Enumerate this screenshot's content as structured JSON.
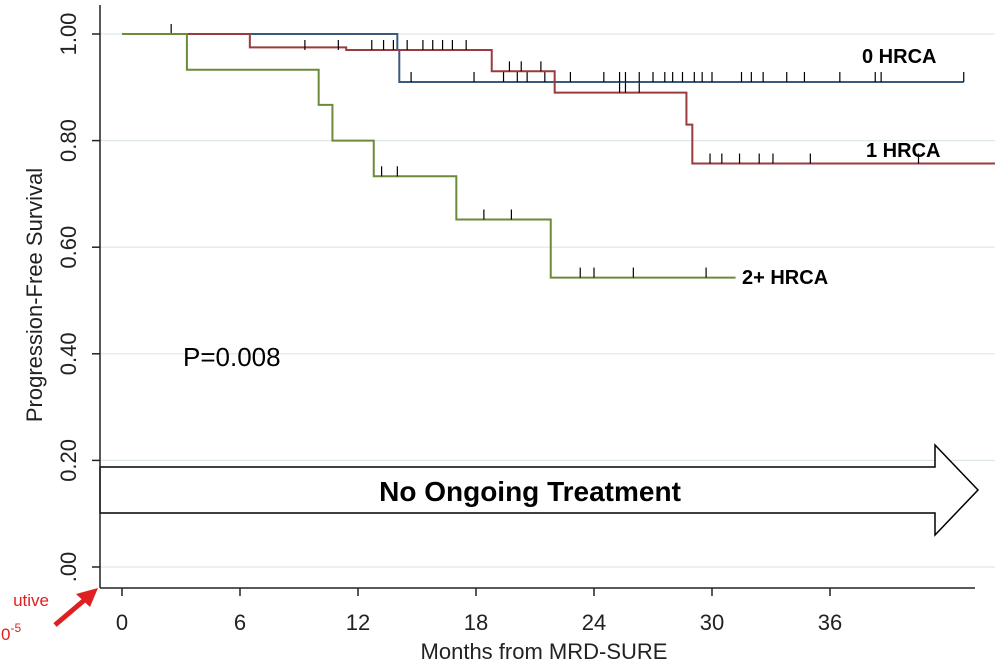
{
  "chart_data": {
    "type": "line",
    "xlabel": "Months from MRD-SURE",
    "ylabel": "Progression-Free Survival",
    "xlim": [
      0,
      48
    ],
    "ylim": [
      0,
      1.0
    ],
    "x_ticks": [
      0,
      6,
      12,
      18,
      24,
      30,
      36
    ],
    "y_ticks": [
      0.0,
      0.2,
      0.4,
      0.6,
      0.8,
      1.0
    ],
    "x_tick_labels": [
      "0",
      "6",
      "12",
      "18",
      "24",
      "30",
      "36"
    ],
    "y_tick_labels": [
      ".00",
      "0.20",
      "0.40",
      "0.60",
      "0.80",
      "1.00"
    ],
    "grid": true,
    "series": [
      {
        "name": "0 HRCA",
        "color": "#3a5a7c",
        "steps": [
          [
            0,
            1.0
          ],
          [
            14.0,
            0.97
          ],
          [
            14.1,
            0.91
          ],
          [
            42.8,
            0.91
          ]
        ],
        "censors": [
          [
            2.5,
            1.0
          ],
          [
            14.7,
            0.91
          ],
          [
            17.9,
            0.91
          ],
          [
            19.4,
            0.91
          ],
          [
            20.1,
            0.91
          ],
          [
            20.6,
            0.91
          ],
          [
            21.5,
            0.91
          ],
          [
            22.8,
            0.91
          ],
          [
            24.5,
            0.91
          ],
          [
            25.3,
            0.91
          ],
          [
            25.6,
            0.91
          ],
          [
            26.3,
            0.91
          ],
          [
            27.0,
            0.91
          ],
          [
            27.6,
            0.91
          ],
          [
            28.0,
            0.91
          ],
          [
            28.5,
            0.91
          ],
          [
            29.1,
            0.91
          ],
          [
            29.5,
            0.91
          ],
          [
            30.0,
            0.91
          ],
          [
            31.5,
            0.91
          ],
          [
            32.0,
            0.91
          ],
          [
            32.6,
            0.91
          ],
          [
            33.8,
            0.91
          ],
          [
            34.7,
            0.91
          ],
          [
            36.5,
            0.91
          ],
          [
            38.3,
            0.91
          ],
          [
            38.6,
            0.91
          ],
          [
            42.8,
            0.91
          ]
        ]
      },
      {
        "name": "1 HRCA",
        "color": "#9b3a3f",
        "steps": [
          [
            0,
            1.0
          ],
          [
            6.5,
            0.975
          ],
          [
            11.4,
            0.97
          ],
          [
            18.8,
            0.93
          ],
          [
            22.0,
            0.89
          ],
          [
            28.7,
            0.83
          ],
          [
            29.0,
            0.757
          ],
          [
            44.9,
            0.757
          ]
        ],
        "censors": [
          [
            9.3,
            0.97
          ],
          [
            11.0,
            0.97
          ],
          [
            12.7,
            0.97
          ],
          [
            13.3,
            0.97
          ],
          [
            13.8,
            0.97
          ],
          [
            14.5,
            0.97
          ],
          [
            15.3,
            0.97
          ],
          [
            15.8,
            0.97
          ],
          [
            16.3,
            0.97
          ],
          [
            16.8,
            0.97
          ],
          [
            17.5,
            0.97
          ],
          [
            19.7,
            0.93
          ],
          [
            20.3,
            0.93
          ],
          [
            21.3,
            0.93
          ],
          [
            25.3,
            0.89
          ],
          [
            25.6,
            0.89
          ],
          [
            26.3,
            0.89
          ],
          [
            29.9,
            0.757
          ],
          [
            30.5,
            0.757
          ],
          [
            31.4,
            0.757
          ],
          [
            32.4,
            0.757
          ],
          [
            33.1,
            0.757
          ],
          [
            35.0,
            0.757
          ],
          [
            40.5,
            0.757
          ],
          [
            44.9,
            0.757
          ]
        ]
      },
      {
        "name": "2+ HRCA",
        "color": "#6b8a3a",
        "steps": [
          [
            0,
            1.0
          ],
          [
            3.3,
            0.933
          ],
          [
            10.0,
            0.867
          ],
          [
            10.7,
            0.8
          ],
          [
            12.8,
            0.733
          ],
          [
            17.0,
            0.652
          ],
          [
            21.8,
            0.543
          ],
          [
            31.2,
            0.543
          ]
        ],
        "censors": [
          [
            13.2,
            0.733
          ],
          [
            14.0,
            0.733
          ],
          [
            18.4,
            0.652
          ],
          [
            19.8,
            0.652
          ],
          [
            23.3,
            0.543
          ],
          [
            24.0,
            0.543
          ],
          [
            26.0,
            0.543
          ],
          [
            29.7,
            0.543
          ]
        ]
      }
    ],
    "series_labels": [
      "0 HRCA",
      "1 HRCA",
      "2+ HRCA"
    ],
    "annotations": {
      "pvalue": "P=0.008",
      "arrow_text": "No Ongoing Treatment",
      "side_note_line1": "utive",
      "side_note_line2": "0",
      "side_note_sup": "-5"
    },
    "colors": {
      "grid": "#dfe6ea",
      "axis": "#222222",
      "side_note": "#e02020"
    }
  }
}
